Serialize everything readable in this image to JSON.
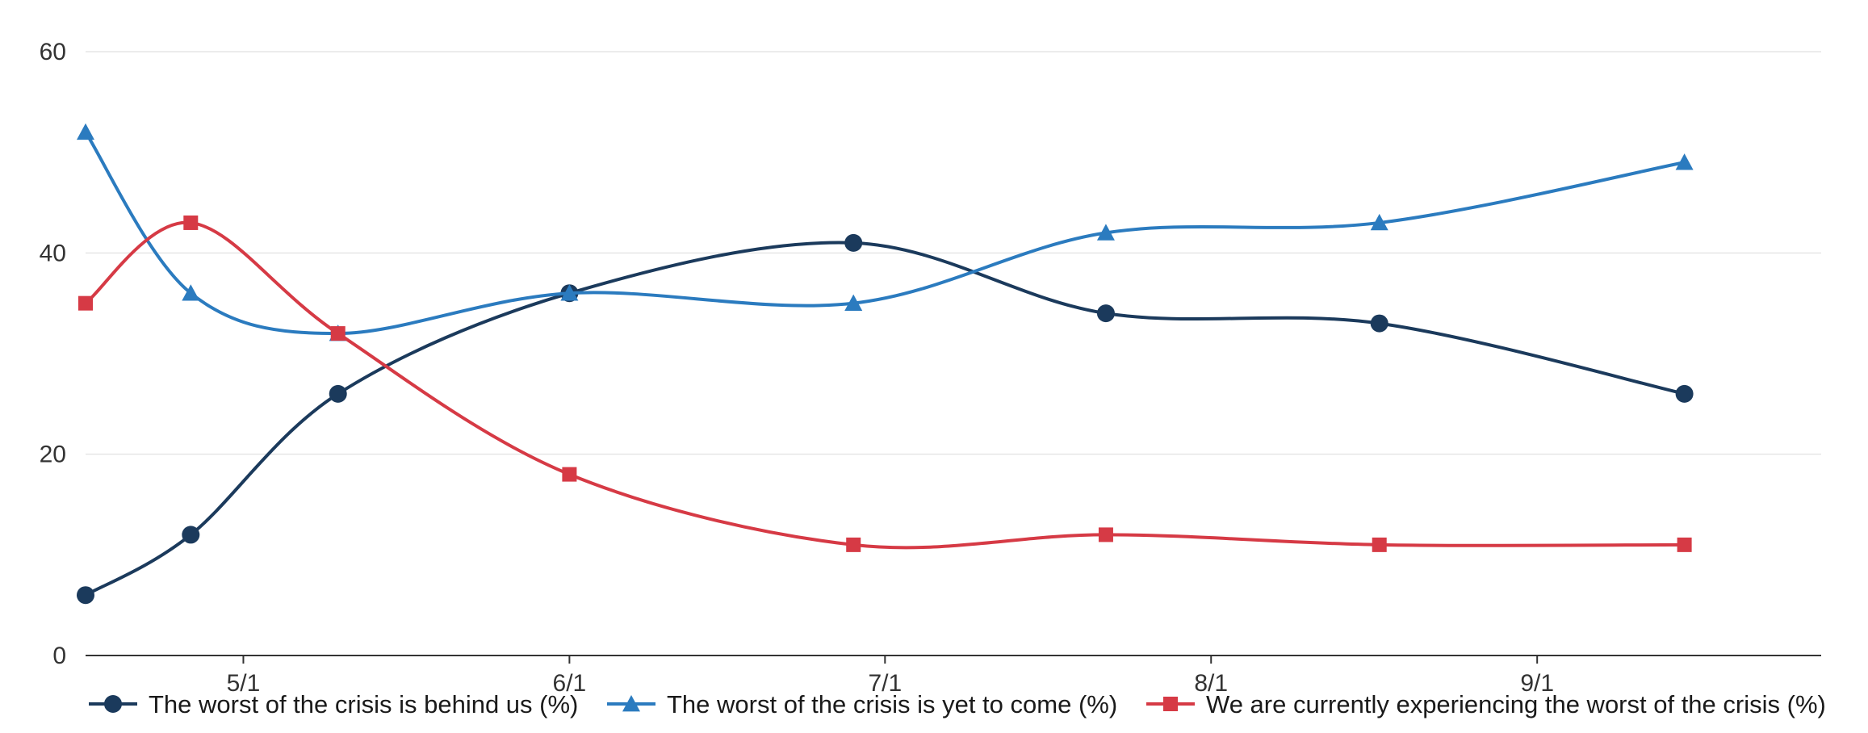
{
  "chart_data": {
    "type": "line",
    "title": "",
    "xlabel": "",
    "ylabel": "",
    "ylim": [
      0,
      60
    ],
    "yticks": [
      0,
      20,
      40,
      60
    ],
    "xlim": [
      "2020-04-16",
      "2020-09-28"
    ],
    "xticks": [
      {
        "date": "2020-05-01",
        "label": "5/1"
      },
      {
        "date": "2020-06-01",
        "label": "6/1"
      },
      {
        "date": "2020-07-01",
        "label": "7/1"
      },
      {
        "date": "2020-08-01",
        "label": "8/1"
      },
      {
        "date": "2020-09-01",
        "label": "9/1"
      }
    ],
    "x": [
      "2020-04-16",
      "2020-04-26",
      "2020-05-10",
      "2020-06-01",
      "2020-06-28",
      "2020-07-22",
      "2020-08-17",
      "2020-09-15"
    ],
    "grid": true,
    "legend_position": "bottom",
    "series": [
      {
        "name": "The worst of the crisis is behind us (%)",
        "marker": "circle",
        "color": "#1b3a5c",
        "values": [
          6,
          12,
          26,
          36,
          41,
          34,
          33,
          26
        ]
      },
      {
        "name": "The worst of the crisis is yet to come (%)",
        "marker": "triangle",
        "color": "#2b7bbf",
        "values": [
          52,
          36,
          32,
          36,
          35,
          42,
          43,
          49
        ]
      },
      {
        "name": "We are currently experiencing the worst of the crisis (%)",
        "marker": "square",
        "color": "#d63a45",
        "values": [
          35,
          43,
          32,
          18,
          11,
          12,
          11,
          11
        ]
      }
    ]
  }
}
